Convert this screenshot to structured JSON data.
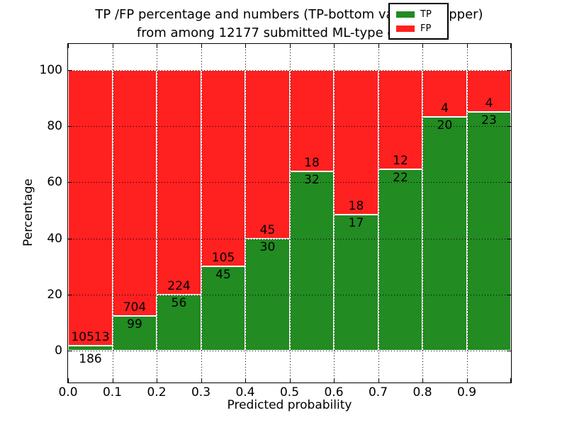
{
  "title": {
    "line1": "TP /FP percentage and numbers (TP-bottom value, FP-upper)",
    "line2": "from among 12177 submitted ML-type contacts"
  },
  "axes": {
    "xlabel": "Predicted probability",
    "ylabel": "Percentage",
    "x_tick_labels": [
      "0.0",
      "0.1",
      "0.2",
      "0.3",
      "0.4",
      "0.5",
      "0.6",
      "0.7",
      "0.8",
      "0.9"
    ],
    "y_tick_labels": [
      "0",
      "20",
      "40",
      "60",
      "80",
      "100"
    ],
    "y_tick_values": [
      0,
      20,
      40,
      60,
      80,
      100
    ]
  },
  "legend": {
    "items": [
      {
        "label": "TP",
        "color": "#228b22"
      },
      {
        "label": "FP",
        "color": "#ff2020"
      }
    ]
  },
  "chart_data": {
    "type": "bar",
    "stacked": true,
    "normalized_to_percent": 100,
    "title": "TP /FP percentage and numbers (TP-bottom value, FP-upper) from among 12177 submitted ML-type contacts",
    "xlabel": "Predicted probability",
    "ylabel": "Percentage",
    "xlim": [
      0.0,
      1.0
    ],
    "ylim": [
      -11,
      109
    ],
    "grid": "dotted",
    "legend_position": "upper right",
    "total_contacts": 12177,
    "bin_edges": [
      0.0,
      0.1,
      0.2,
      0.3,
      0.4,
      0.5,
      0.6,
      0.7,
      0.8,
      0.9,
      1.0
    ],
    "series": [
      {
        "name": "TP",
        "color": "#228b22",
        "counts": [
          186,
          99,
          56,
          45,
          30,
          32,
          17,
          22,
          20,
          23
        ]
      },
      {
        "name": "FP",
        "color": "#ff2020",
        "counts": [
          10513,
          704,
          224,
          105,
          45,
          18,
          18,
          12,
          4,
          4
        ]
      }
    ],
    "tp_percent_of_bin": [
      1.7,
      12.3,
      20.0,
      30.0,
      40.0,
      64.0,
      48.6,
      64.7,
      83.3,
      85.2
    ]
  }
}
